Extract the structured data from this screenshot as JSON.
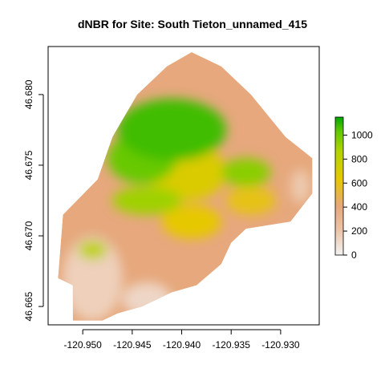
{
  "title": "dNBR for Site: South Tieton_unnamed_415",
  "chart_data": {
    "type": "heatmap",
    "title": "dNBR for Site: South Tieton_unnamed_415",
    "xlabel": "",
    "ylabel": "",
    "x_ticks": [
      {
        "value": -120.95,
        "label": "-120.950"
      },
      {
        "value": -120.945,
        "label": "-120.945"
      },
      {
        "value": -120.94,
        "label": "-120.940"
      },
      {
        "value": -120.935,
        "label": "-120.935"
      },
      {
        "value": -120.93,
        "label": "-120.930"
      }
    ],
    "y_ticks": [
      {
        "value": 46.665,
        "label": "46.665"
      },
      {
        "value": 46.67,
        "label": "46.670"
      },
      {
        "value": 46.675,
        "label": "46.675"
      },
      {
        "value": 46.68,
        "label": "46.680"
      }
    ],
    "xlim": [
      -120.9535,
      -120.9261
    ],
    "ylim": [
      46.6637,
      46.6834
    ],
    "legend": {
      "position": "right",
      "range": [
        0,
        1150
      ],
      "ticks": [
        {
          "value": 0,
          "label": "0"
        },
        {
          "value": 200,
          "label": "200"
        },
        {
          "value": 400,
          "label": "400"
        },
        {
          "value": 600,
          "label": "600"
        },
        {
          "value": 800,
          "label": "800"
        },
        {
          "value": 1000,
          "label": "1000"
        }
      ]
    },
    "colors": {
      "low": "#f2f2f2",
      "mid_low": "#e6a87c",
      "mid": "#e6c800",
      "high": "#5fc800",
      "max": "#00a600"
    },
    "site_outline": [
      [
        -120.951,
        46.664
      ],
      [
        -120.951,
        46.6665
      ],
      [
        -120.9525,
        46.667
      ],
      [
        -120.952,
        46.6715
      ],
      [
        -120.9485,
        46.674
      ],
      [
        -120.947,
        46.677
      ],
      [
        -120.9445,
        46.68
      ],
      [
        -120.9415,
        46.682
      ],
      [
        -120.939,
        46.683
      ],
      [
        -120.936,
        46.682
      ],
      [
        -120.933,
        46.68
      ],
      [
        -120.9295,
        46.677
      ],
      [
        -120.9268,
        46.6755
      ],
      [
        -120.9268,
        46.673
      ],
      [
        -120.929,
        46.671
      ],
      [
        -120.9335,
        46.6705
      ],
      [
        -120.935,
        46.6695
      ],
      [
        -120.936,
        46.668
      ],
      [
        -120.9385,
        46.6665
      ],
      [
        -120.941,
        46.666
      ],
      [
        -120.944,
        46.665
      ],
      [
        -120.9465,
        46.6645
      ],
      [
        -120.948,
        46.664
      ]
    ],
    "severity_zones": [
      {
        "value": 1050,
        "lon": -120.941,
        "lat": 46.6775,
        "rx": 0.0055,
        "ry": 0.0022
      },
      {
        "value": 980,
        "lon": -120.944,
        "lat": 46.6755,
        "rx": 0.0035,
        "ry": 0.0018
      },
      {
        "value": 900,
        "lon": -120.9335,
        "lat": 46.6745,
        "rx": 0.0025,
        "ry": 0.001
      },
      {
        "value": 850,
        "lon": -120.9435,
        "lat": 46.6725,
        "rx": 0.0035,
        "ry": 0.001
      },
      {
        "value": 750,
        "lon": -120.949,
        "lat": 46.669,
        "rx": 0.0015,
        "ry": 0.0007
      },
      {
        "value": 650,
        "lon": -120.9395,
        "lat": 46.6745,
        "rx": 0.004,
        "ry": 0.002
      },
      {
        "value": 600,
        "lon": -120.939,
        "lat": 46.671,
        "rx": 0.003,
        "ry": 0.0012
      },
      {
        "value": 560,
        "lon": -120.933,
        "lat": 46.6725,
        "rx": 0.0025,
        "ry": 0.001
      },
      {
        "value": 150,
        "lon": -120.949,
        "lat": 46.667,
        "rx": 0.003,
        "ry": 0.003
      },
      {
        "value": 120,
        "lon": -120.9435,
        "lat": 46.6655,
        "rx": 0.0025,
        "ry": 0.0012
      },
      {
        "value": 180,
        "lon": -120.928,
        "lat": 46.6735,
        "rx": 0.001,
        "ry": 0.0012
      }
    ]
  }
}
